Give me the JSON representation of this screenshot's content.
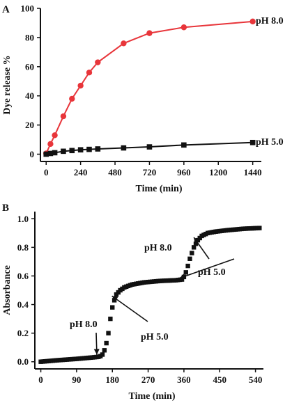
{
  "chart_data": [
    {
      "panel": "A",
      "type": "line",
      "xlabel": "Time (min)",
      "ylabel": "Dye release %",
      "xlim": [
        -40,
        1500
      ],
      "ylim": [
        -5,
        100
      ],
      "xticks": [
        0,
        240,
        480,
        720,
        960,
        1200,
        1440
      ],
      "yticks": [
        0,
        20,
        40,
        60,
        80,
        100
      ],
      "grid": false,
      "series": [
        {
          "name": "pH 8.0",
          "color": "#e8353a",
          "marker": "circle",
          "x": [
            0,
            30,
            60,
            120,
            180,
            240,
            300,
            360,
            540,
            720,
            960,
            1440
          ],
          "y": [
            0.5,
            7,
            13,
            26,
            38,
            47,
            56,
            63,
            76,
            83,
            87,
            91
          ]
        },
        {
          "name": "pH 5.0",
          "color": "#111111",
          "marker": "square",
          "x": [
            0,
            30,
            60,
            120,
            180,
            240,
            300,
            360,
            540,
            720,
            960,
            1440
          ],
          "y": [
            0,
            0.5,
            1,
            2,
            2.5,
            3,
            3.3,
            3.6,
            4.3,
            5,
            6.3,
            8
          ]
        }
      ]
    },
    {
      "panel": "B",
      "type": "scatter",
      "xlabel": "Time (min)",
      "ylabel": "Absorbance",
      "xlim": [
        -15,
        560
      ],
      "ylim": [
        -0.05,
        1.05
      ],
      "xticks": [
        0,
        90,
        180,
        270,
        360,
        450,
        540
      ],
      "yticks": [
        0.0,
        0.2,
        0.4,
        0.6,
        0.8,
        1.0
      ],
      "grid": false,
      "marker": "square",
      "color": "#111111",
      "curve": [
        [
          0,
          0.0
        ],
        [
          40,
          0.01
        ],
        [
          90,
          0.02
        ],
        [
          130,
          0.03
        ],
        [
          148,
          0.035
        ],
        [
          155,
          0.05
        ],
        [
          160,
          0.08
        ],
        [
          165,
          0.13
        ],
        [
          170,
          0.2
        ],
        [
          175,
          0.3
        ],
        [
          180,
          0.38
        ],
        [
          185,
          0.43
        ],
        [
          190,
          0.47
        ],
        [
          200,
          0.5
        ],
        [
          210,
          0.52
        ],
        [
          230,
          0.54
        ],
        [
          260,
          0.555
        ],
        [
          300,
          0.565
        ],
        [
          340,
          0.57
        ],
        [
          355,
          0.575
        ],
        [
          362,
          0.6
        ],
        [
          368,
          0.65
        ],
        [
          375,
          0.72
        ],
        [
          385,
          0.8
        ],
        [
          395,
          0.85
        ],
        [
          405,
          0.88
        ],
        [
          420,
          0.9
        ],
        [
          440,
          0.91
        ],
        [
          470,
          0.92
        ],
        [
          510,
          0.93
        ],
        [
          550,
          0.935
        ]
      ],
      "annotations": [
        {
          "text": "pH 8.0",
          "arrow_to": [
            148,
            0.04
          ]
        },
        {
          "text": "pH 5.0",
          "arrow_to": [
            186,
            0.45
          ]
        },
        {
          "text": "pH 8.0",
          "arrow_to": [
            356,
            0.575
          ]
        },
        {
          "text": "pH 5.0",
          "arrow_to": [
            392,
            0.86
          ]
        }
      ]
    }
  ],
  "panels": {
    "a": {
      "label": "A",
      "series_labels": [
        "pH 8.0",
        "pH 5.0"
      ]
    },
    "b": {
      "label": "B"
    }
  }
}
